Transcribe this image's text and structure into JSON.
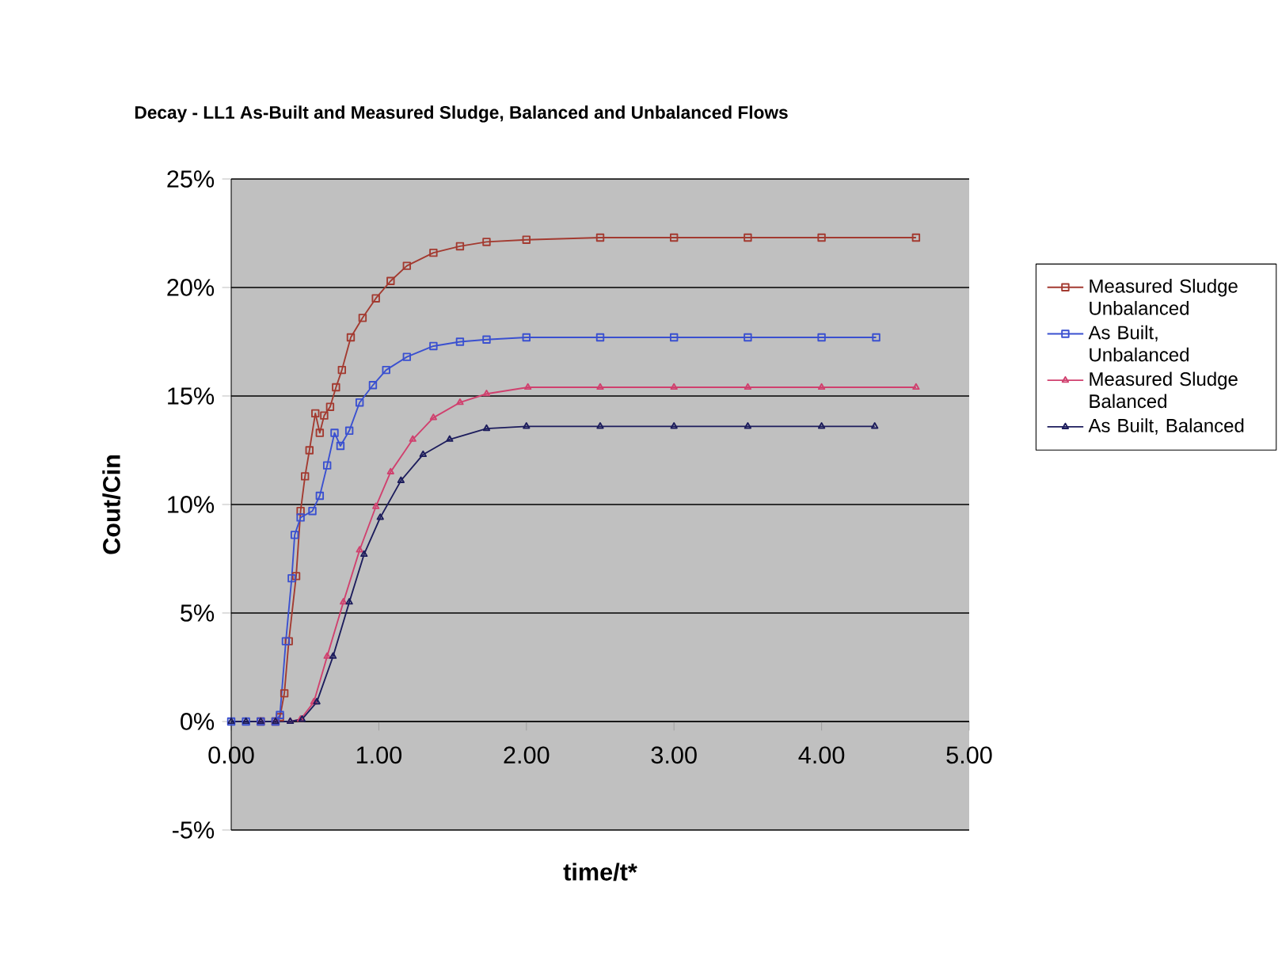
{
  "chart_data": {
    "type": "line",
    "title": "Decay - LL1  As-Built and Measured Sludge, Balanced and Unbalanced Flows",
    "xlabel": "time/t*",
    "ylabel": "Cout/Cin",
    "xlim": [
      0,
      5
    ],
    "xticks": [
      {
        "value": 0,
        "label": "0.00"
      },
      {
        "value": 1,
        "label": "1.00"
      },
      {
        "value": 2,
        "label": "2.00"
      },
      {
        "value": 3,
        "label": "3.00"
      },
      {
        "value": 4,
        "label": "4.00"
      },
      {
        "value": 5,
        "label": "5.00"
      }
    ],
    "ylim": [
      -5,
      25
    ],
    "yticks": [
      {
        "value": -5,
        "label": "-5%"
      },
      {
        "value": 0,
        "label": "0%"
      },
      {
        "value": 5,
        "label": "5%"
      },
      {
        "value": 10,
        "label": "10%"
      },
      {
        "value": 15,
        "label": "15%"
      },
      {
        "value": 20,
        "label": "20%"
      },
      {
        "value": 25,
        "label": "25%"
      }
    ],
    "grid": "y",
    "legend": "right",
    "series": [
      {
        "name": "Measured Sludge Unbalanced",
        "color": "#a33a30",
        "marker": "square",
        "x": [
          0.2,
          0.3,
          0.33,
          0.36,
          0.39,
          0.44,
          0.47,
          0.5,
          0.53,
          0.57,
          0.6,
          0.63,
          0.67,
          0.71,
          0.75,
          0.81,
          0.89,
          0.98,
          1.08,
          1.19,
          1.37,
          1.55,
          1.73,
          2.0,
          2.5,
          3.0,
          3.5,
          4.0,
          4.64
        ],
        "values": [
          0,
          0,
          0.2,
          1.3,
          3.7,
          6.7,
          9.7,
          11.3,
          12.5,
          14.2,
          13.3,
          14.1,
          14.5,
          15.4,
          16.2,
          17.7,
          18.6,
          19.5,
          20.3,
          21.0,
          21.6,
          21.9,
          22.1,
          22.2,
          22.3,
          22.3,
          22.3,
          22.3,
          22.3
        ]
      },
      {
        "name": "As Built, Unbalanced",
        "color": "#3a50d0",
        "marker": "square",
        "x": [
          0,
          0.1,
          0.2,
          0.3,
          0.33,
          0.37,
          0.41,
          0.43,
          0.47,
          0.55,
          0.6,
          0.65,
          0.7,
          0.74,
          0.8,
          0.87,
          0.96,
          1.05,
          1.19,
          1.37,
          1.55,
          1.73,
          2.0,
          2.5,
          3.0,
          3.5,
          4.0,
          4.37
        ],
        "values": [
          0,
          0,
          0,
          0,
          0.3,
          3.7,
          6.6,
          8.6,
          9.4,
          9.7,
          10.4,
          11.8,
          13.3,
          12.7,
          13.4,
          14.7,
          15.5,
          16.2,
          16.8,
          17.3,
          17.5,
          17.6,
          17.7,
          17.7,
          17.7,
          17.7,
          17.7,
          17.7
        ]
      },
      {
        "name": "Measured Sludge Balanced",
        "color": "#d0406e",
        "marker": "triangle",
        "x": [
          0.2,
          0.3,
          0.4,
          0.47,
          0.56,
          0.65,
          0.76,
          0.87,
          0.98,
          1.08,
          1.23,
          1.37,
          1.55,
          1.73,
          2.01,
          2.5,
          3.0,
          3.5,
          4.0,
          4.64
        ],
        "values": [
          0,
          0,
          0,
          0.1,
          0.9,
          3.0,
          5.5,
          7.9,
          9.9,
          11.5,
          13.0,
          14.0,
          14.7,
          15.1,
          15.4,
          15.4,
          15.4,
          15.4,
          15.4,
          15.4
        ]
      },
      {
        "name": "As Built, Balanced",
        "color": "#1c1c5c",
        "marker": "triangle",
        "x": [
          0,
          0.1,
          0.2,
          0.3,
          0.4,
          0.48,
          0.58,
          0.69,
          0.8,
          0.9,
          1.01,
          1.15,
          1.3,
          1.48,
          1.73,
          2.0,
          2.5,
          3.0,
          3.5,
          4.0,
          4.36
        ],
        "values": [
          0,
          0,
          0,
          0,
          0,
          0.1,
          0.9,
          3.0,
          5.5,
          7.7,
          9.4,
          11.1,
          12.3,
          13.0,
          13.5,
          13.6,
          13.6,
          13.6,
          13.6,
          13.6,
          13.6
        ]
      }
    ]
  }
}
